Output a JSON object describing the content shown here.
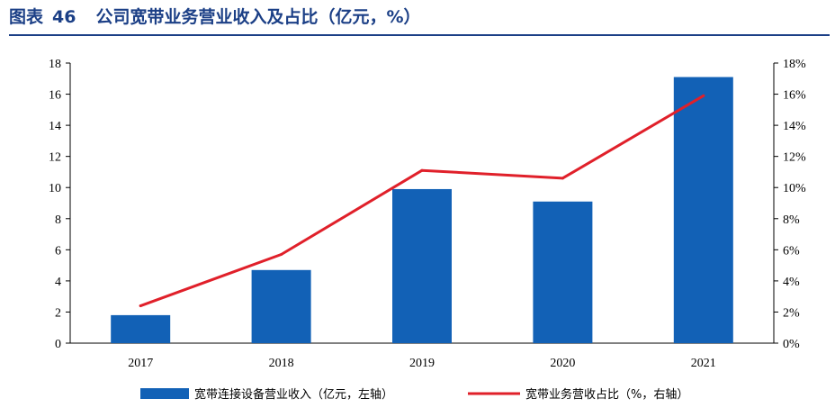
{
  "figure": {
    "label": "图表",
    "number": "46",
    "title": "公司宽带业务营业收入及占比（亿元，%）"
  },
  "colors": {
    "title": "#1b3f86",
    "bar": "#1261b6",
    "line": "#e0202a"
  },
  "chart_data": {
    "type": "bar",
    "categories": [
      "2017",
      "2018",
      "2019",
      "2020",
      "2021"
    ],
    "series": [
      {
        "name": "宽带连接设备营业收入（亿元，左轴）",
        "type": "bar",
        "axis": "left",
        "values": [
          1.8,
          4.7,
          9.9,
          9.1,
          17.1
        ]
      },
      {
        "name": "宽带业务营收占比（%，右轴）",
        "type": "line",
        "axis": "right",
        "values": [
          2.4,
          5.7,
          11.1,
          10.6,
          15.9
        ]
      }
    ],
    "y_left": {
      "min": 0,
      "max": 18,
      "step": 2,
      "ticks": [
        "0",
        "2",
        "4",
        "6",
        "8",
        "10",
        "12",
        "14",
        "16",
        "18"
      ]
    },
    "y_right": {
      "min": 0,
      "max": 18,
      "step": 2,
      "ticks": [
        "0%",
        "2%",
        "4%",
        "6%",
        "8%",
        "10%",
        "12%",
        "14%",
        "16%",
        "18%"
      ]
    },
    "grid": false,
    "legend": "bottom"
  }
}
